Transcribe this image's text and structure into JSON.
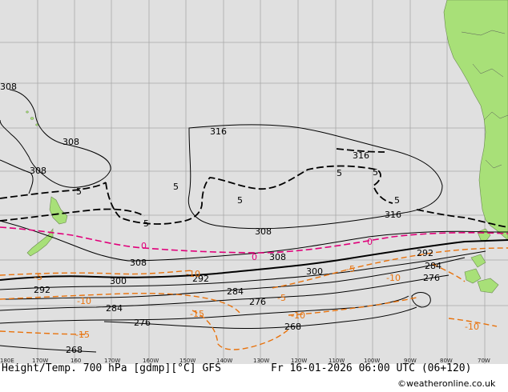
{
  "footer": {
    "left_title": "Height/Temp. 700 hPa [gdmp][°C] GFS",
    "valid_time": "Fr 16-01-2026 06:00 UTC (06+120)",
    "credit": "©weatheronline.co.uk"
  },
  "longitudes": [
    "180E",
    "170W",
    "160",
    "170W",
    "160W",
    "150W",
    "140W",
    "130W",
    "120W",
    "110W",
    "100W",
    "90W",
    "80W",
    "70W"
  ],
  "height_labels": [
    "308",
    "308",
    "308",
    "316",
    "316",
    "316",
    "308",
    "308",
    "308",
    "300",
    "300",
    "292",
    "292",
    "292",
    "284",
    "284",
    "284",
    "276",
    "276",
    "276",
    "268",
    "268"
  ],
  "temp_labels": [
    "5",
    "5",
    "5",
    "5",
    "5",
    "5",
    "5",
    "0",
    "0",
    "0",
    "-5",
    "-5",
    "-5",
    "-10",
    "-10",
    "-10",
    "-10",
    "-10",
    "-15",
    "-15"
  ],
  "colors": {
    "ocean": "#e0e0e0",
    "land": "#a8e078",
    "grid": "#a8a8a8",
    "height_contour": "#000000",
    "temp_zero": "#e0007a",
    "temp_negative": "#e8720c",
    "temp_positive": "#000000"
  }
}
